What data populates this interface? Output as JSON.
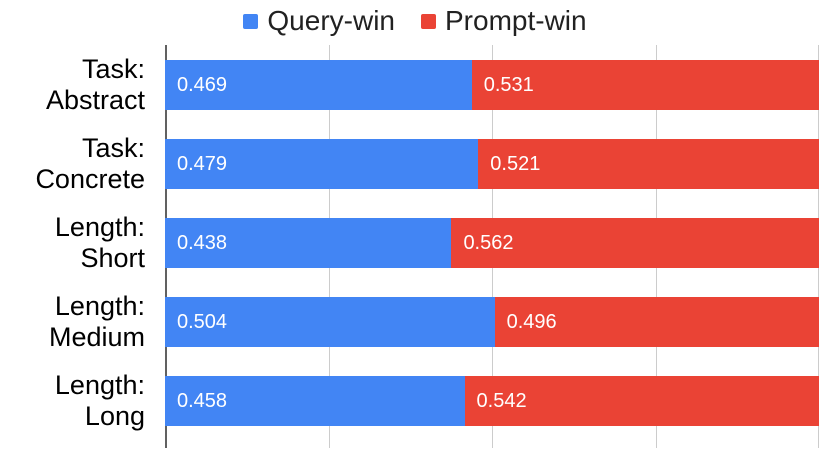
{
  "chart_data": {
    "type": "bar",
    "orientation": "horizontal",
    "stacked": true,
    "title": "",
    "xlabel": "",
    "ylabel": "",
    "categories": [
      "Task:\nAbstract",
      "Task:\nConcrete",
      "Length:\nShort",
      "Length:\nMedium",
      "Length:\nLong"
    ],
    "series": [
      {
        "name": "Query-win",
        "color": "#4285F4",
        "values": [
          0.469,
          0.479,
          0.438,
          0.504,
          0.458
        ]
      },
      {
        "name": "Prompt-win",
        "color": "#EA4335",
        "values": [
          0.531,
          0.521,
          0.562,
          0.496,
          0.542
        ]
      }
    ],
    "xlim": [
      0,
      1
    ],
    "x_tick_positions": [
      0,
      0.25,
      0.5,
      0.75,
      1
    ],
    "x_tick_labels_visible": false,
    "grid": "vertical",
    "legend_position": "top",
    "value_labels_position": "inside-start"
  },
  "legend": {
    "items": [
      {
        "label": "Query-win",
        "color": "#4285F4"
      },
      {
        "label": "Prompt-win",
        "color": "#EA4335"
      }
    ]
  },
  "colors": {
    "background": "#ffffff",
    "gridline": "#cccccc",
    "axis_line": "#616161",
    "category_text": "#000000",
    "legend_text": "#212121",
    "value_text": "#ffffff"
  }
}
